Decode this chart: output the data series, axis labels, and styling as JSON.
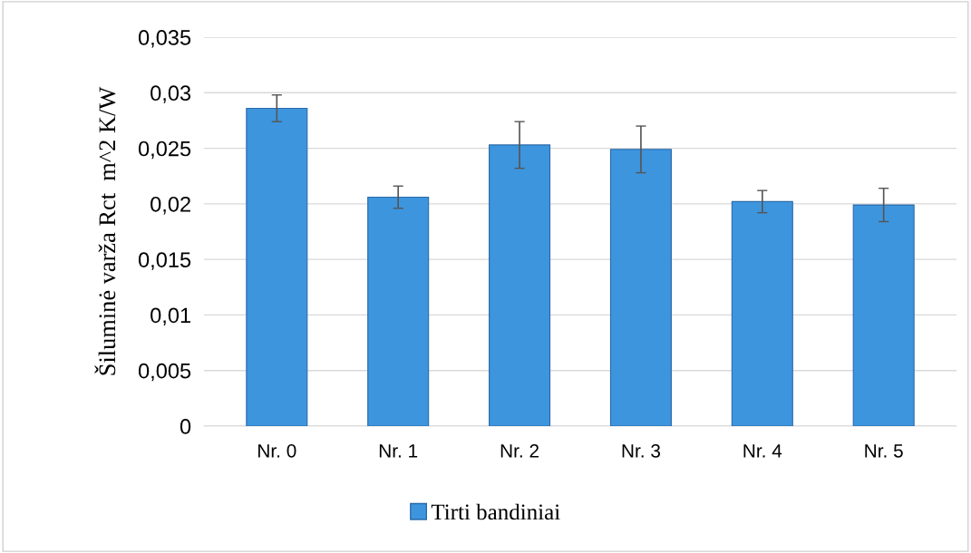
{
  "chart_data": {
    "type": "bar",
    "ylabel": "Šiluminė varža Rct  m^2 K/W",
    "categories": [
      "Nr. 0",
      "Nr. 1",
      "Nr. 2",
      "Nr. 3",
      "Nr. 4",
      "Nr. 5"
    ],
    "series": [
      {
        "name": "Tirti bandiniai",
        "color": "#3d95de",
        "values": [
          0.0286,
          0.0206,
          0.0253,
          0.0249,
          0.0202,
          0.0199
        ],
        "errors": [
          0.0012,
          0.001,
          0.0021,
          0.0021,
          0.001,
          0.0015
        ]
      }
    ],
    "ylim": [
      0,
      0.035
    ],
    "yticks": [
      0,
      {
        "value": 0.005,
        "label": "0,005"
      },
      {
        "value": 0.01,
        "label": "0,01"
      },
      {
        "value": 0.015,
        "label": "0,015"
      },
      {
        "value": 0.02,
        "label": "0,02"
      },
      {
        "value": 0.025,
        "label": "0,025"
      },
      {
        "value": 0.03,
        "label": "0,03"
      },
      {
        "value": 0.035,
        "label": "0,035"
      }
    ],
    "grid": "y",
    "legend": "bottom"
  }
}
